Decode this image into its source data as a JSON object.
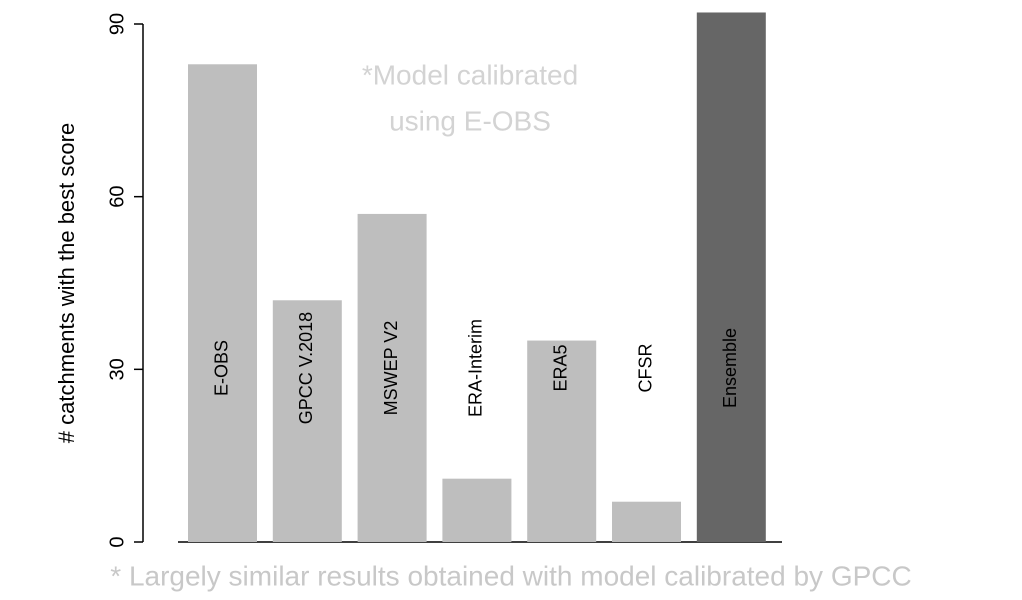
{
  "chart_data": {
    "type": "bar",
    "ylabel": "# catchments with the best score",
    "categories": [
      "E-OBS",
      "GPCC V.2018",
      "MSWEP V2",
      "ERA-Interim",
      "ERA5",
      "CFSR",
      "Ensemble"
    ],
    "values": [
      83,
      42,
      57,
      11,
      35,
      7,
      92
    ],
    "colors": [
      "#bebebe",
      "#bebebe",
      "#bebebe",
      "#bebebe",
      "#bebebe",
      "#bebebe",
      "#666666"
    ],
    "ylim": [
      0,
      90
    ],
    "yticks": [
      0,
      30,
      60,
      90
    ],
    "annotation": [
      "*Model calibrated",
      "using E-OBS"
    ],
    "footnote": "* Largely similar results obtained with model calibrated by GPCC"
  }
}
